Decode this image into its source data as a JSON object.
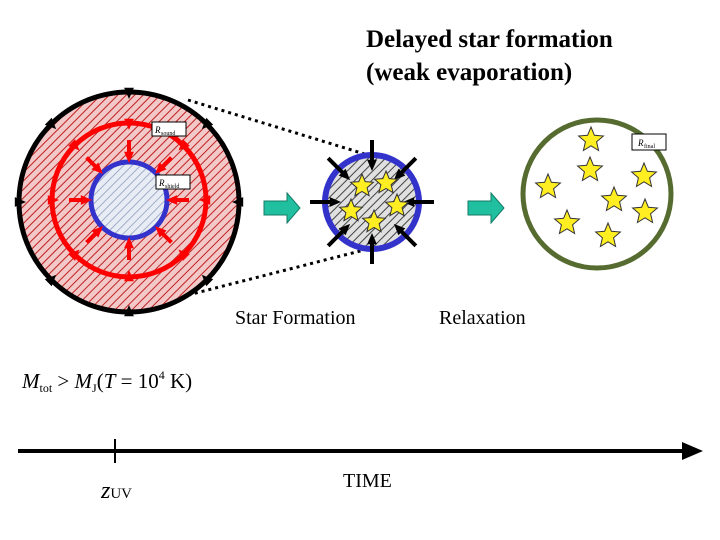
{
  "title": {
    "line1": "Delayed star formation",
    "line2": "(weak evaporation)"
  },
  "labels": {
    "r_sound": "R",
    "r_sound_sub": "sound",
    "r_shield": "R",
    "r_shield_sub": "shield",
    "r_final": "R",
    "r_final_sub": "final",
    "star_formation": "Star Formation",
    "relaxation": "Relaxation",
    "time": "TIME",
    "z_uv": "z",
    "z_uv_sub": "UV"
  },
  "formula": {
    "M": "M",
    "M_sub": "tot",
    "gt": ">",
    "MJ": "M",
    "MJ_sub": "J",
    "open": "(",
    "T": "T",
    "eq": "= 10",
    "exp": "4",
    "unit": " K)"
  },
  "colors": {
    "outer_ring": "#000000",
    "sound_ring": "#ff0000",
    "shield_ring": "#3333cc",
    "hatch": "#cc2222",
    "cloud_fill": "#f2c8c8",
    "final_ring": "#556b2f",
    "star_fill": "#ffee22",
    "process_arrow": "#1fbf9f"
  },
  "icons": [
    "star-icon",
    "right-arrow-icon"
  ]
}
